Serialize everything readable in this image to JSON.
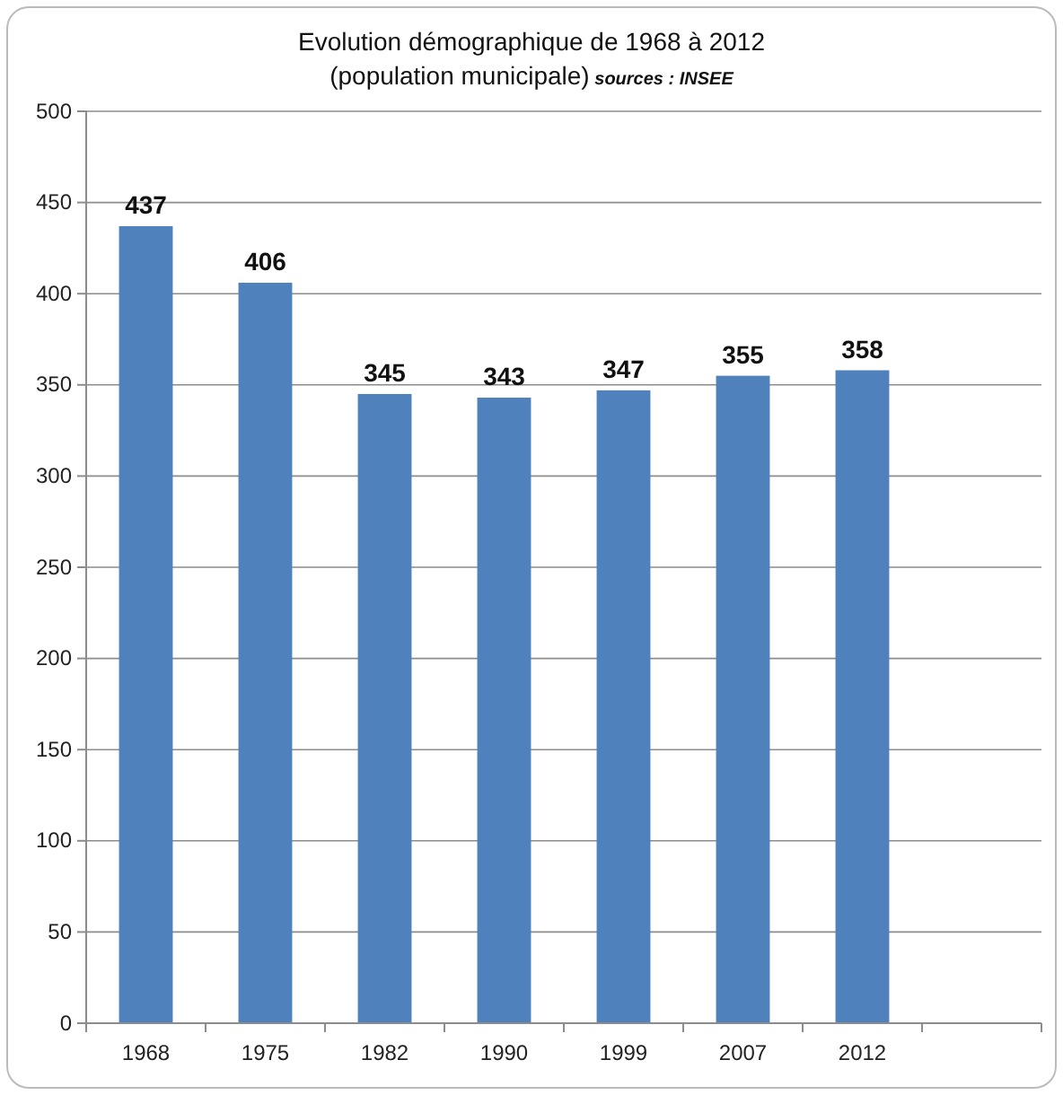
{
  "chart_data": {
    "type": "bar",
    "title": "Evolution démographique de 1968 à 2012",
    "subtitle": "(population municipale)",
    "annotations": [
      "sources : INSEE"
    ],
    "categories": [
      "1968",
      "1975",
      "1982",
      "1990",
      "1999",
      "2007",
      "2012",
      null
    ],
    "values": [
      437,
      406,
      345,
      343,
      347,
      355,
      358,
      null
    ],
    "color": "#4f81bd",
    "ylim": [
      0,
      500
    ],
    "yticks": [
      0,
      50,
      100,
      150,
      200,
      250,
      300,
      350,
      400,
      450,
      500
    ],
    "grid": "y",
    "data_labels": true
  }
}
